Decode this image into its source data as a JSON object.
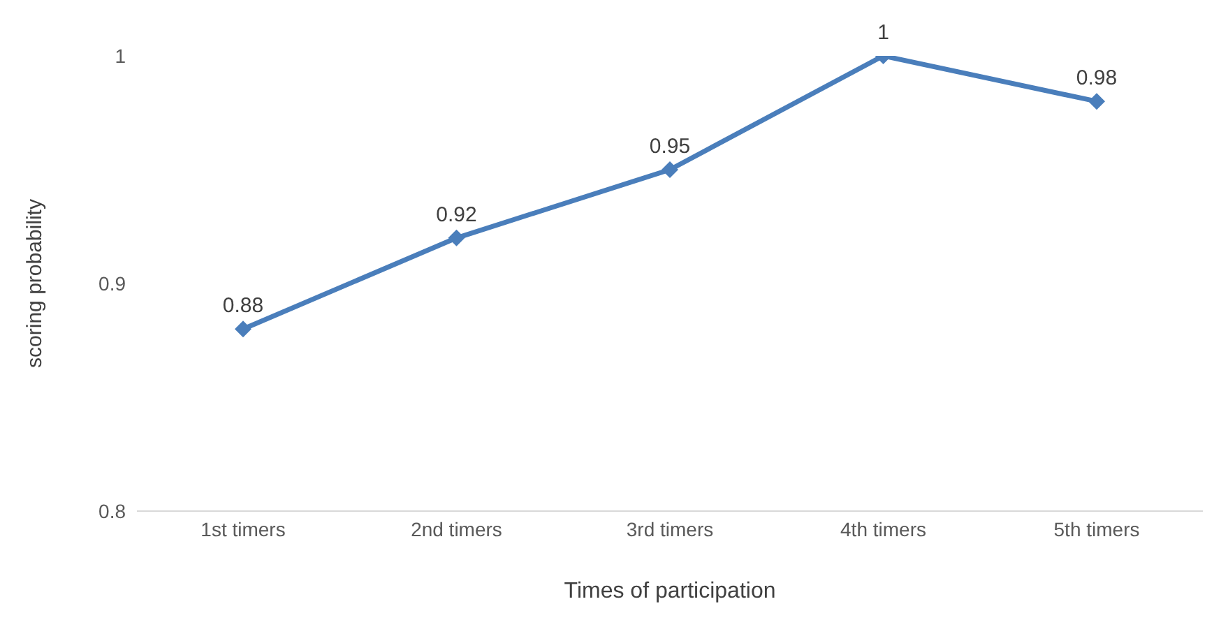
{
  "chart_data": {
    "type": "line",
    "xlabel": "Times of participation",
    "ylabel": "scoring probability",
    "categories": [
      "1st timers",
      "2nd timers",
      "3rd timers",
      "4th timers",
      "5th timers"
    ],
    "series": [
      {
        "color": "#4a7ebb",
        "values": [
          0.88,
          0.92,
          0.95,
          1,
          0.98
        ]
      }
    ],
    "ylim": [
      0.8,
      1
    ],
    "yticks": [
      0.8,
      0.9,
      1
    ],
    "marker": "diamond",
    "data_labels": true
  }
}
